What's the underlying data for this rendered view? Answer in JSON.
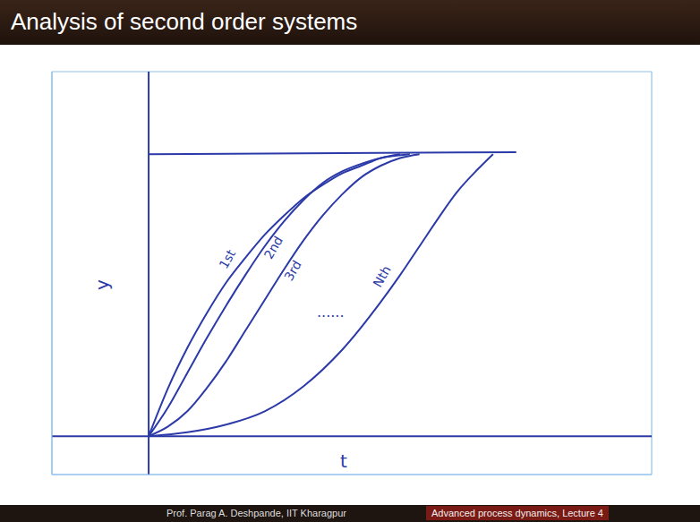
{
  "chart_data": {
    "type": "line",
    "title": "Analysis of second order systems",
    "x_label": "t",
    "y_label": "y",
    "xlim": [
      -5,
      26
    ],
    "ylim": [
      -2,
      19
    ],
    "xticks": [
      -5,
      -4,
      -3,
      -2,
      -1,
      0,
      1,
      2,
      3,
      4,
      5,
      6,
      7,
      8,
      9,
      10,
      11,
      12,
      13,
      14,
      15,
      16,
      17,
      18,
      19,
      20,
      21,
      22,
      23,
      24,
      25,
      26
    ],
    "yticks": [
      -2,
      -1,
      0,
      1,
      2,
      3,
      4,
      5,
      6,
      7,
      8,
      9,
      10,
      11,
      12,
      13,
      14,
      15,
      16,
      17,
      18,
      19
    ],
    "grid": true,
    "tick_labels": false,
    "series": [
      {
        "name": "1st",
        "color": "#2b3aa8",
        "x": [
          0,
          1,
          2,
          3,
          4,
          5,
          6,
          7,
          8,
          9,
          10,
          11,
          12,
          13
        ],
        "values": [
          0,
          2.5,
          4.6,
          6.4,
          8,
          9.3,
          10.5,
          11.5,
          12.4,
          13.1,
          13.7,
          14.1,
          14.5,
          14.7
        ]
      },
      {
        "name": "2nd",
        "color": "#2b3aa8",
        "x": [
          0,
          1,
          2,
          3,
          4,
          5,
          6,
          7,
          8,
          9,
          10,
          11,
          12,
          13.5
        ],
        "values": [
          0,
          1.5,
          3.3,
          5.1,
          6.8,
          8.4,
          9.9,
          11.2,
          12.3,
          13.2,
          13.8,
          14.2,
          14.5,
          14.7
        ]
      },
      {
        "name": "3rd",
        "color": "#2b3aa8",
        "x": [
          0,
          1,
          2,
          3,
          4,
          5,
          6,
          7,
          8,
          9,
          10,
          11,
          12,
          13,
          14
        ],
        "values": [
          0,
          0.5,
          1.3,
          2.5,
          3.9,
          5.5,
          7.1,
          8.7,
          10.2,
          11.5,
          12.6,
          13.5,
          14.1,
          14.5,
          14.7
        ]
      },
      {
        "name": "Nth",
        "color": "#2b3aa8",
        "x": [
          0,
          2,
          4,
          6,
          8,
          10,
          12,
          13,
          14,
          15,
          16,
          17,
          17.8
        ],
        "values": [
          0,
          0.2,
          0.6,
          1.3,
          2.6,
          4.5,
          7,
          8.4,
          9.9,
          11.4,
          12.8,
          13.9,
          14.7
        ]
      },
      {
        "color": "#2b3aa8",
        "x": [
          0,
          19
        ],
        "values": [
          14.7,
          14.8
        ]
      }
    ],
    "annotations": [
      {
        "text": "......",
        "x": 9.4,
        "y": 6.5
      }
    ]
  },
  "footer": [
    "Prof. Parag A. Deshpande, IIT Kharagpur",
    "Advanced process dynamics, Lecture 4"
  ]
}
